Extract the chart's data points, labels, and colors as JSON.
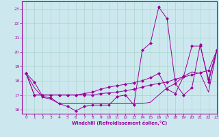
{
  "xlabel": "Windchill (Refroidissement éolien,°C)",
  "bg_color": "#cce8ee",
  "line_color": "#990099",
  "grid_color": "#aad4cc",
  "xlim": [
    -0.5,
    23
  ],
  "ylim": [
    15.7,
    23.5
  ],
  "yticks": [
    16,
    17,
    18,
    19,
    20,
    21,
    22,
    23
  ],
  "xticks": [
    0,
    1,
    2,
    3,
    4,
    5,
    6,
    7,
    8,
    9,
    10,
    11,
    12,
    13,
    14,
    15,
    16,
    17,
    18,
    19,
    20,
    21,
    22,
    23
  ],
  "series_with_markers": [
    [
      18.5,
      17.9,
      16.9,
      16.8,
      16.4,
      16.2,
      15.9,
      16.2,
      16.3,
      16.3,
      16.3,
      16.9,
      17.0,
      16.3,
      20.1,
      20.6,
      23.1,
      22.3,
      17.8,
      17.0,
      17.5,
      20.5,
      17.9,
      20.1
    ],
    [
      18.5,
      17.0,
      17.0,
      17.0,
      17.0,
      17.0,
      17.0,
      17.0,
      17.0,
      17.1,
      17.15,
      17.2,
      17.3,
      17.4,
      17.55,
      17.7,
      17.8,
      17.9,
      18.1,
      18.25,
      18.4,
      18.55,
      18.7,
      20.1
    ],
    [
      18.5,
      17.0,
      17.0,
      17.0,
      17.0,
      17.0,
      17.0,
      17.1,
      17.2,
      17.4,
      17.55,
      17.65,
      17.75,
      17.85,
      18.0,
      18.2,
      18.5,
      17.4,
      17.1,
      18.3,
      20.4,
      20.4,
      18.1,
      20.1
    ]
  ],
  "series_no_marker": [
    [
      18.5,
      17.5,
      16.85,
      16.7,
      16.4,
      16.4,
      16.4,
      16.4,
      16.4,
      16.4,
      16.4,
      16.4,
      16.4,
      16.4,
      16.4,
      16.5,
      17.0,
      17.5,
      17.8,
      18.3,
      18.6,
      18.5,
      17.2,
      20.1
    ]
  ]
}
